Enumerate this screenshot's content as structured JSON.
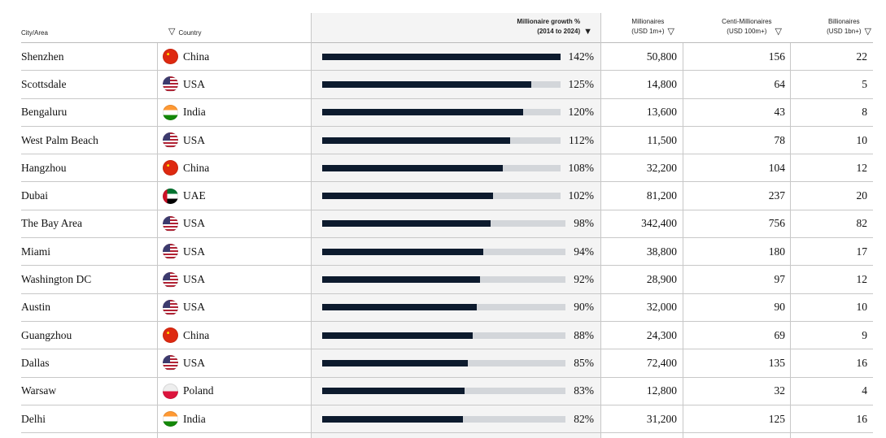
{
  "table": {
    "header": {
      "city": "City/Area",
      "country": "Country",
      "growth": [
        "Millionaire growth %",
        "(2014 to 2024)"
      ],
      "millionaires": [
        "Millionaires",
        "(USD 1m+)"
      ],
      "centi": [
        "Centi-Millionaires",
        "(USD 100m+)"
      ],
      "billionaires": [
        "Billionaires",
        "(USD 1bn+)"
      ]
    },
    "rows": [
      {
        "city": "Shenzhen",
        "country": "China",
        "growth": 142,
        "growth_label": "142%",
        "millionaires": "50,800",
        "centi": "156",
        "billionaires": "22"
      },
      {
        "city": "Scottsdale",
        "country": "USA",
        "growth": 125,
        "growth_label": "125%",
        "millionaires": "14,800",
        "centi": "64",
        "billionaires": "5"
      },
      {
        "city": "Bengaluru",
        "country": "India",
        "growth": 120,
        "growth_label": "120%",
        "millionaires": "13,600",
        "centi": "43",
        "billionaires": "8"
      },
      {
        "city": "West Palm Beach",
        "country": "USA",
        "growth": 112,
        "growth_label": "112%",
        "millionaires": "11,500",
        "centi": "78",
        "billionaires": "10"
      },
      {
        "city": "Hangzhou",
        "country": "China",
        "growth": 108,
        "growth_label": "108%",
        "millionaires": "32,200",
        "centi": "104",
        "billionaires": "12"
      },
      {
        "city": "Dubai",
        "country": "UAE",
        "growth": 102,
        "growth_label": "102%",
        "millionaires": "81,200",
        "centi": "237",
        "billionaires": "20"
      },
      {
        "city": "The Bay Area",
        "country": "USA",
        "growth": 98,
        "growth_label": "98%",
        "millionaires": "342,400",
        "centi": "756",
        "billionaires": "82"
      },
      {
        "city": "Miami",
        "country": "USA",
        "growth": 94,
        "growth_label": "94%",
        "millionaires": "38,800",
        "centi": "180",
        "billionaires": "17"
      },
      {
        "city": "Washington DC",
        "country": "USA",
        "growth": 92,
        "growth_label": "92%",
        "millionaires": "28,900",
        "centi": "97",
        "billionaires": "12"
      },
      {
        "city": "Austin",
        "country": "USA",
        "growth": 90,
        "growth_label": "90%",
        "millionaires": "32,000",
        "centi": "90",
        "billionaires": "10"
      },
      {
        "city": "Guangzhou",
        "country": "China",
        "growth": 88,
        "growth_label": "88%",
        "millionaires": "24,300",
        "centi": "69",
        "billionaires": "9"
      },
      {
        "city": "Dallas",
        "country": "USA",
        "growth": 85,
        "growth_label": "85%",
        "millionaires": "72,400",
        "centi": "135",
        "billionaires": "16"
      },
      {
        "city": "Warsaw",
        "country": "Poland",
        "growth": 83,
        "growth_label": "83%",
        "millionaires": "12,800",
        "centi": "32",
        "billionaires": "4"
      },
      {
        "city": "Delhi",
        "country": "India",
        "growth": 82,
        "growth_label": "82%",
        "millionaires": "31,200",
        "centi": "125",
        "billionaires": "16"
      }
    ]
  }
}
